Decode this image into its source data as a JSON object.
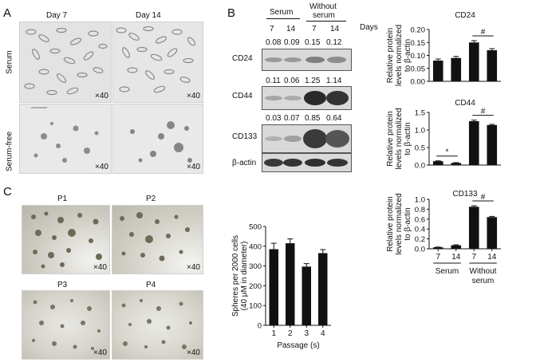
{
  "panels": {
    "a": "A",
    "b": "B",
    "c": "C"
  },
  "panel_a": {
    "col_labels": [
      "Day 7",
      "Day 14"
    ],
    "row_labels": [
      "Serum",
      "Serum-free"
    ],
    "magnification": "×40"
  },
  "panel_b": {
    "header": {
      "serum": "Serum",
      "without_serum_line1": "Without",
      "without_serum_line2": "serum",
      "days_label": "Days",
      "day_values": [
        "7",
        "14",
        "7",
        "14"
      ]
    },
    "blots": [
      {
        "protein": "CD24",
        "ratios": [
          "0.08",
          "0.09",
          "0.15",
          "0.12"
        ]
      },
      {
        "protein": "CD44",
        "ratios": [
          "0.11",
          "0.06",
          "1.25",
          "1.14"
        ]
      },
      {
        "protein": "CD133",
        "ratios": [
          "0.03",
          "0.07",
          "0.85",
          "0.64"
        ]
      },
      {
        "protein": "β-actin",
        "ratios": []
      }
    ]
  },
  "panel_c": {
    "photo_labels": [
      "P1",
      "P2",
      "P3",
      "P4"
    ],
    "magnification": "×40"
  },
  "bar_x_labels": {
    "days": [
      "7",
      "14",
      "7",
      "14"
    ],
    "group_serum": "Serum",
    "group_without_line1": "Without",
    "group_without_line2": "serum"
  },
  "chart_data": [
    {
      "type": "bar",
      "title": "CD24",
      "ylabel": "Relative protein levels normalized to β-actin",
      "categories": [
        "7",
        "14",
        "7",
        "14"
      ],
      "groups": [
        "Serum",
        "Serum",
        "Without serum",
        "Without serum"
      ],
      "values": [
        0.08,
        0.09,
        0.15,
        0.12
      ],
      "errors": [
        0.006,
        0.006,
        0.007,
        0.006
      ],
      "ylim": [
        0,
        0.2
      ],
      "yticks": [
        "0.00",
        "0.05",
        "0.10",
        "0.15",
        "0.20"
      ],
      "significance": [
        {
          "between": [
            2,
            3
          ],
          "symbol": "#"
        }
      ]
    },
    {
      "type": "bar",
      "title": "CD44",
      "ylabel": "Relative protein levels normalized to β-actin",
      "categories": [
        "7",
        "14",
        "7",
        "14"
      ],
      "groups": [
        "Serum",
        "Serum",
        "Without serum",
        "Without serum"
      ],
      "values": [
        0.11,
        0.06,
        1.25,
        1.14
      ],
      "errors": [
        0.01,
        0.01,
        0.03,
        0.02
      ],
      "ylim": [
        0,
        1.5
      ],
      "yticks": [
        "0.0",
        "0.5",
        "1.0",
        "1.5"
      ],
      "significance": [
        {
          "between": [
            0,
            1
          ],
          "symbol": "*"
        },
        {
          "between": [
            2,
            3
          ],
          "symbol": "#"
        }
      ]
    },
    {
      "type": "bar",
      "title": "CD133",
      "ylabel": "Relative protein levels normalized to β-actin",
      "categories": [
        "7",
        "14",
        "7",
        "14"
      ],
      "groups": [
        "Serum",
        "Serum",
        "Without serum",
        "Without serum"
      ],
      "values": [
        0.03,
        0.07,
        0.85,
        0.64
      ],
      "errors": [
        0.005,
        0.01,
        0.02,
        0.015
      ],
      "ylim": [
        0,
        1.0
      ],
      "yticks": [
        "0.0",
        "0.2",
        "0.4",
        "0.6",
        "0.8",
        "1.0"
      ],
      "significance": [
        {
          "between": [
            2,
            3
          ],
          "symbol": "#"
        }
      ]
    },
    {
      "type": "bar",
      "title": "",
      "xlabel": "Passage (s)",
      "ylabel": "Spheres per 2000 cells (40 μM in diameter)",
      "categories": [
        "1",
        "2",
        "3",
        "4"
      ],
      "values": [
        385,
        415,
        297,
        365
      ],
      "errors": [
        30,
        22,
        15,
        18
      ],
      "ylim": [
        0,
        500
      ],
      "yticks": [
        "0",
        "100",
        "200",
        "300",
        "400",
        "500"
      ]
    }
  ]
}
